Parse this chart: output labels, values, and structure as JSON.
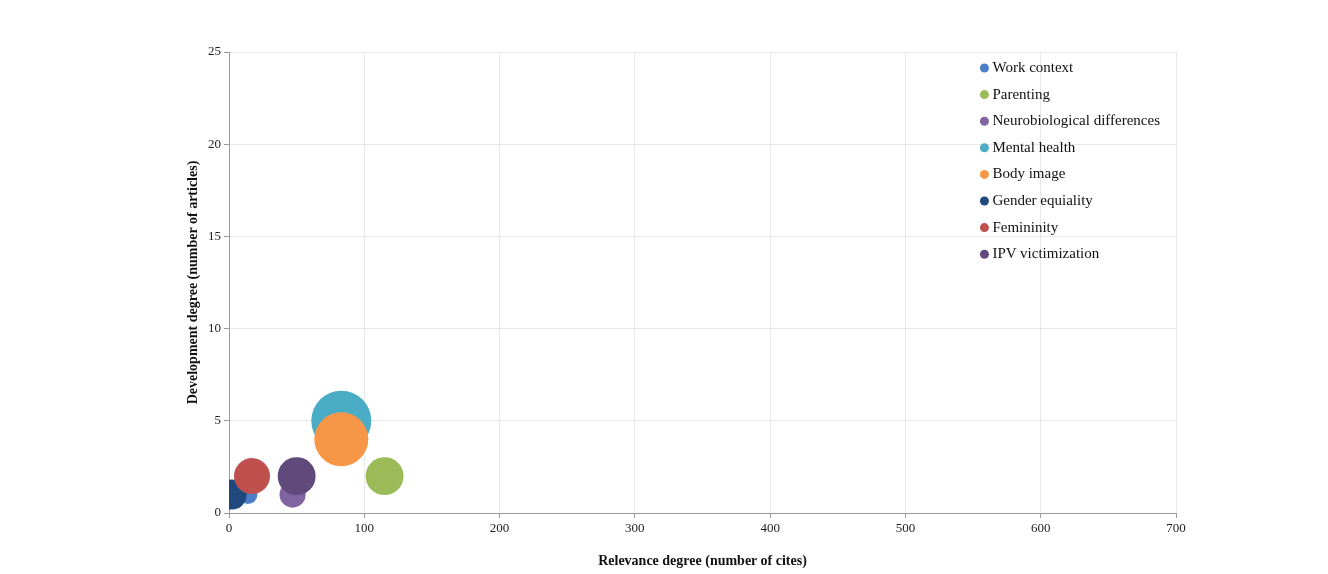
{
  "chart_data": {
    "type": "bubble",
    "xlabel": "Relevance degree (number of cites)",
    "ylabel": "Development degree (number of articles)",
    "xlim": [
      0,
      700
    ],
    "xticks": [
      0,
      100,
      200,
      300,
      400,
      500,
      600,
      700
    ],
    "ylim": [
      0,
      25
    ],
    "yticks": [
      0,
      5,
      10,
      15,
      20,
      25
    ],
    "grid": true,
    "legend": "top right",
    "series": [
      {
        "name": "Work context",
        "color": "#4a7ec6",
        "x": [
          14
        ],
        "values": [
          1
        ],
        "sizes": [
          0.1
        ]
      },
      {
        "name": "Parenting",
        "color": "#9bbb59",
        "x": [
          115
        ],
        "values": [
          2
        ],
        "sizes": [
          0.4
        ]
      },
      {
        "name": "Neurobiological differences",
        "color": "#8064a2",
        "x": [
          47
        ],
        "values": [
          1
        ],
        "sizes": [
          0.19
        ]
      },
      {
        "name": "Mental health",
        "color": "#4bacc6",
        "x": [
          83
        ],
        "values": [
          5
        ],
        "sizes": [
          1
        ]
      },
      {
        "name": "Body image",
        "color": "#f79646",
        "x": [
          83
        ],
        "values": [
          4
        ],
        "sizes": [
          0.81
        ]
      },
      {
        "name": "Gender equiality",
        "color": "#1f497d",
        "x": [
          2
        ],
        "values": [
          1
        ],
        "sizes": [
          0.25
        ]
      },
      {
        "name": "Femininity",
        "color": "#c0504d",
        "x": [
          17
        ],
        "values": [
          2
        ],
        "sizes": [
          0.36
        ]
      },
      {
        "name": "IPV victimization",
        "color": "#604a7b",
        "x": [
          50
        ],
        "values": [
          2
        ],
        "sizes": [
          0.4
        ]
      }
    ]
  }
}
